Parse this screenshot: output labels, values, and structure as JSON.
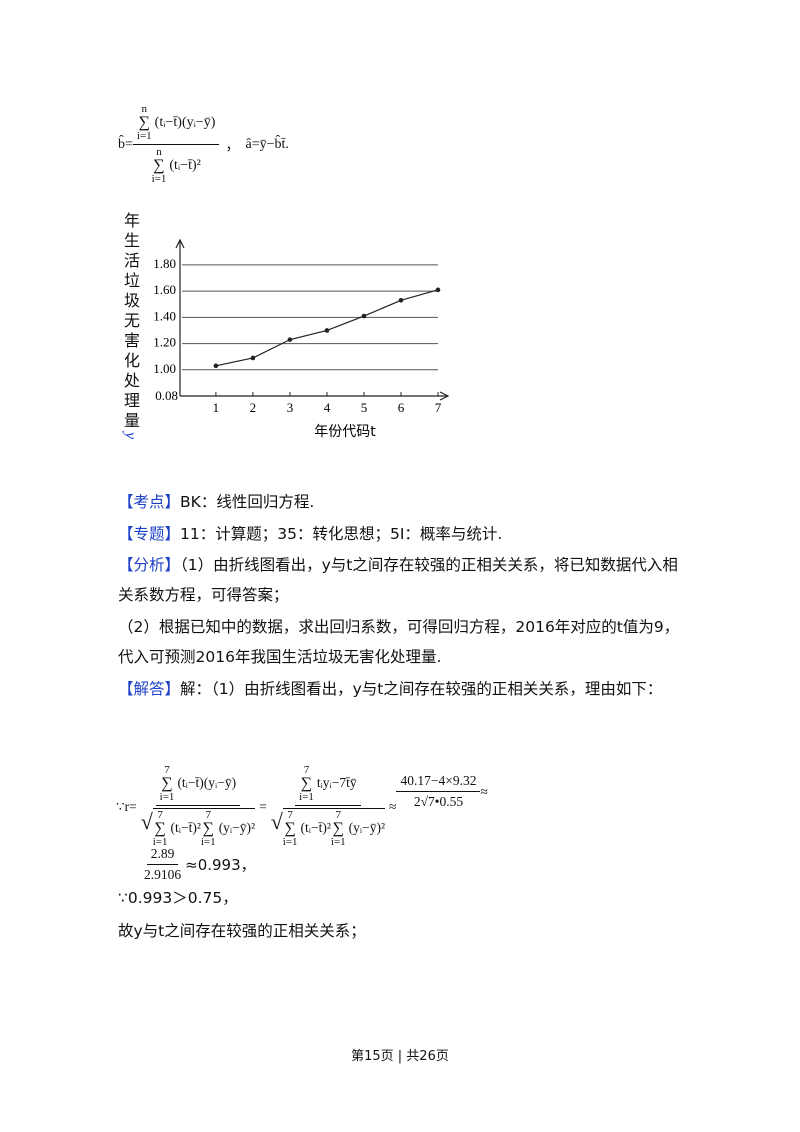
{
  "formula_top": {
    "lhs": "b̂=",
    "num_upper": "n",
    "num_sigma": "∑",
    "num_lower": "i=1",
    "num_body": "(tᵢ−t̄)(yᵢ−ȳ)",
    "den_upper": "n",
    "den_sigma": "∑",
    "den_lower": "i=1",
    "den_body": "(tᵢ−t̄)²",
    "sep": "，",
    "rhs": "â=ȳ−b̂t̄."
  },
  "chart_data": {
    "type": "line",
    "y_label": "年生活垃圾无害化处理量",
    "y_symbol": "y",
    "x_label": "年份代码t",
    "origin_label": "0.08",
    "x": [
      1,
      2,
      3,
      4,
      5,
      6,
      7
    ],
    "xlim": [
      0.03,
      7.27
    ],
    "xticks": [
      1,
      2,
      3,
      4,
      5,
      6,
      7
    ],
    "ylim": [
      0.8,
      1.99
    ],
    "yticks": [
      {
        "value": 1.0,
        "label": "1.00"
      },
      {
        "value": 1.2,
        "label": "1.20"
      },
      {
        "value": 1.4,
        "label": "1.40"
      },
      {
        "value": 1.6,
        "label": "1.60"
      },
      {
        "value": 1.8,
        "label": "1.80"
      }
    ],
    "grid": true,
    "series": [
      {
        "color": "#222222",
        "values": [
          1.03,
          1.09,
          1.23,
          1.3,
          1.41,
          1.53,
          1.61
        ]
      }
    ]
  },
  "paragraphs": [
    {
      "tag": "【考点】",
      "text": "BK：线性回归方程."
    },
    {
      "tag": "【专题】",
      "text": "11：计算题；35：转化思想；5I：概率与统计."
    },
    {
      "tag": "【分析】",
      "text": "（1）由折线图看出，y与t之间存在较强的正相关关系，将已知数据代入相关系数方程，可得答案；"
    },
    {
      "text": "（2）根据已知中的数据，求出回归系数，可得回归方程，2016年对应的t值为9，代入可预测2016年我国生活垃圾无害化处理量."
    },
    {
      "tag": "【解答】",
      "text": "解：（1）由折线图看出，y与t之间存在较强的正相关关系，理由如下："
    }
  ],
  "formula_r": {
    "lhs": "∵r=",
    "f1_num_sigma": "∑",
    "f1_num_upper": "7",
    "f1_num_lower": "i=1",
    "f1_num_body": "(tᵢ−t̄)(yᵢ−ȳ)",
    "f1_den_a_upper": "7",
    "f1_den_a_sigma": "∑",
    "f1_den_a_lower": "i=1",
    "f1_den_a_body": "(tᵢ−t̄)²",
    "f1_den_b_upper": "7",
    "f1_den_b_sigma": "∑",
    "f1_den_b_lower": "i=1",
    "f1_den_b_body": "(yᵢ−ȳ)²",
    "eq": "=",
    "f2_num_sigma": "∑",
    "f2_num_upper": "7",
    "f2_num_lower": "i=1",
    "f2_num_body": "tᵢyᵢ−7t̄ȳ",
    "f2_den_a_upper": "7",
    "f2_den_a_sigma": "∑",
    "f2_den_a_lower": "i=1",
    "f2_den_a_body": "(tᵢ−t̄)²",
    "f2_den_b_upper": "7",
    "f2_den_b_sigma": "∑",
    "f2_den_b_lower": "i=1",
    "f2_den_b_body": "(yᵢ−ȳ)²",
    "approx1": "≈",
    "f3_num": "40.17−4×9.32",
    "f3_den": "2√7•0.55",
    "approx2": "≈",
    "f4_num": "2.89",
    "f4_den": "2.9106",
    "result": "≈0.993，"
  },
  "lines_after": [
    "∵0.993＞0.75，",
    "故y与t之间存在较强的正相关关系；"
  ],
  "footer": "第15页 | 共26页"
}
